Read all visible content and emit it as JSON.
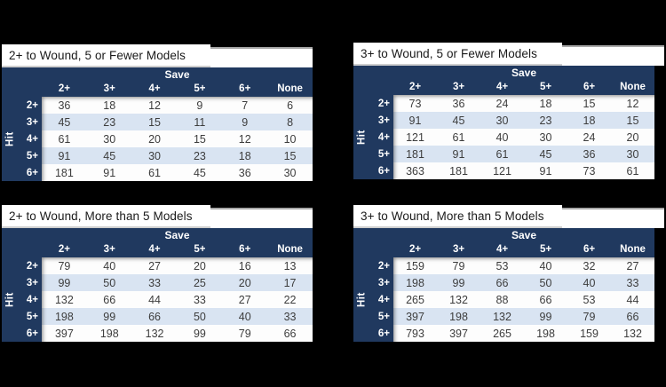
{
  "page": {
    "background": "#000000"
  },
  "colors": {
    "header_navy": "#20395f",
    "row_alt": "#d9e4f2",
    "row_white": "#fdfdfd",
    "data_text": "#3d3d3d",
    "header_text": "#ffffff",
    "title_text": "#1a1a1a",
    "title_bg": "#ffffff"
  },
  "chart_data": [
    {
      "type": "table",
      "title": "2+ to Wound, 5 or Fewer Models",
      "col_group_label": "Save",
      "row_group_label": "Hit",
      "columns": [
        "2+",
        "3+",
        "4+",
        "5+",
        "6+",
        "None"
      ],
      "rows": [
        {
          "label": "2+",
          "values": [
            36,
            18,
            12,
            9,
            7,
            6
          ]
        },
        {
          "label": "3+",
          "values": [
            45,
            23,
            15,
            11,
            9,
            8
          ]
        },
        {
          "label": "4+",
          "values": [
            61,
            30,
            20,
            15,
            12,
            10
          ]
        },
        {
          "label": "5+",
          "values": [
            91,
            45,
            30,
            23,
            18,
            15
          ]
        },
        {
          "label": "6+",
          "values": [
            181,
            91,
            61,
            45,
            36,
            30
          ]
        }
      ]
    },
    {
      "type": "table",
      "title": "3+ to Wound, 5 or Fewer Models",
      "col_group_label": "Save",
      "row_group_label": "Hit",
      "columns": [
        "2+",
        "3+",
        "4+",
        "5+",
        "6+",
        "None"
      ],
      "rows": [
        {
          "label": "2+",
          "values": [
            73,
            36,
            24,
            18,
            15,
            12
          ]
        },
        {
          "label": "3+",
          "values": [
            91,
            45,
            30,
            23,
            18,
            15
          ]
        },
        {
          "label": "4+",
          "values": [
            121,
            61,
            40,
            30,
            24,
            20
          ]
        },
        {
          "label": "5+",
          "values": [
            181,
            91,
            61,
            45,
            36,
            30
          ]
        },
        {
          "label": "6+",
          "values": [
            363,
            181,
            121,
            91,
            73,
            61
          ]
        }
      ]
    },
    {
      "type": "table",
      "title": "2+ to Wound, More than 5 Models",
      "col_group_label": "Save",
      "row_group_label": "Hit",
      "columns": [
        "2+",
        "3+",
        "4+",
        "5+",
        "6+",
        "None"
      ],
      "rows": [
        {
          "label": "2+",
          "values": [
            79,
            40,
            27,
            20,
            16,
            13
          ]
        },
        {
          "label": "3+",
          "values": [
            99,
            50,
            33,
            25,
            20,
            17
          ]
        },
        {
          "label": "4+",
          "values": [
            132,
            66,
            44,
            33,
            27,
            22
          ]
        },
        {
          "label": "5+",
          "values": [
            198,
            99,
            66,
            50,
            40,
            33
          ]
        },
        {
          "label": "6+",
          "values": [
            397,
            198,
            132,
            99,
            79,
            66
          ]
        }
      ]
    },
    {
      "type": "table",
      "title": "3+ to Wound, More than 5 Models",
      "col_group_label": "Save",
      "row_group_label": "Hit",
      "columns": [
        "2+",
        "3+",
        "4+",
        "5+",
        "6+",
        "None"
      ],
      "rows": [
        {
          "label": "2+",
          "values": [
            159,
            79,
            53,
            40,
            32,
            27
          ]
        },
        {
          "label": "3+",
          "values": [
            198,
            99,
            66,
            50,
            40,
            33
          ]
        },
        {
          "label": "4+",
          "values": [
            265,
            132,
            88,
            66,
            53,
            44
          ]
        },
        {
          "label": "5+",
          "values": [
            397,
            198,
            132,
            99,
            79,
            66
          ]
        },
        {
          "label": "6+",
          "values": [
            793,
            397,
            265,
            198,
            159,
            132
          ]
        }
      ]
    }
  ]
}
